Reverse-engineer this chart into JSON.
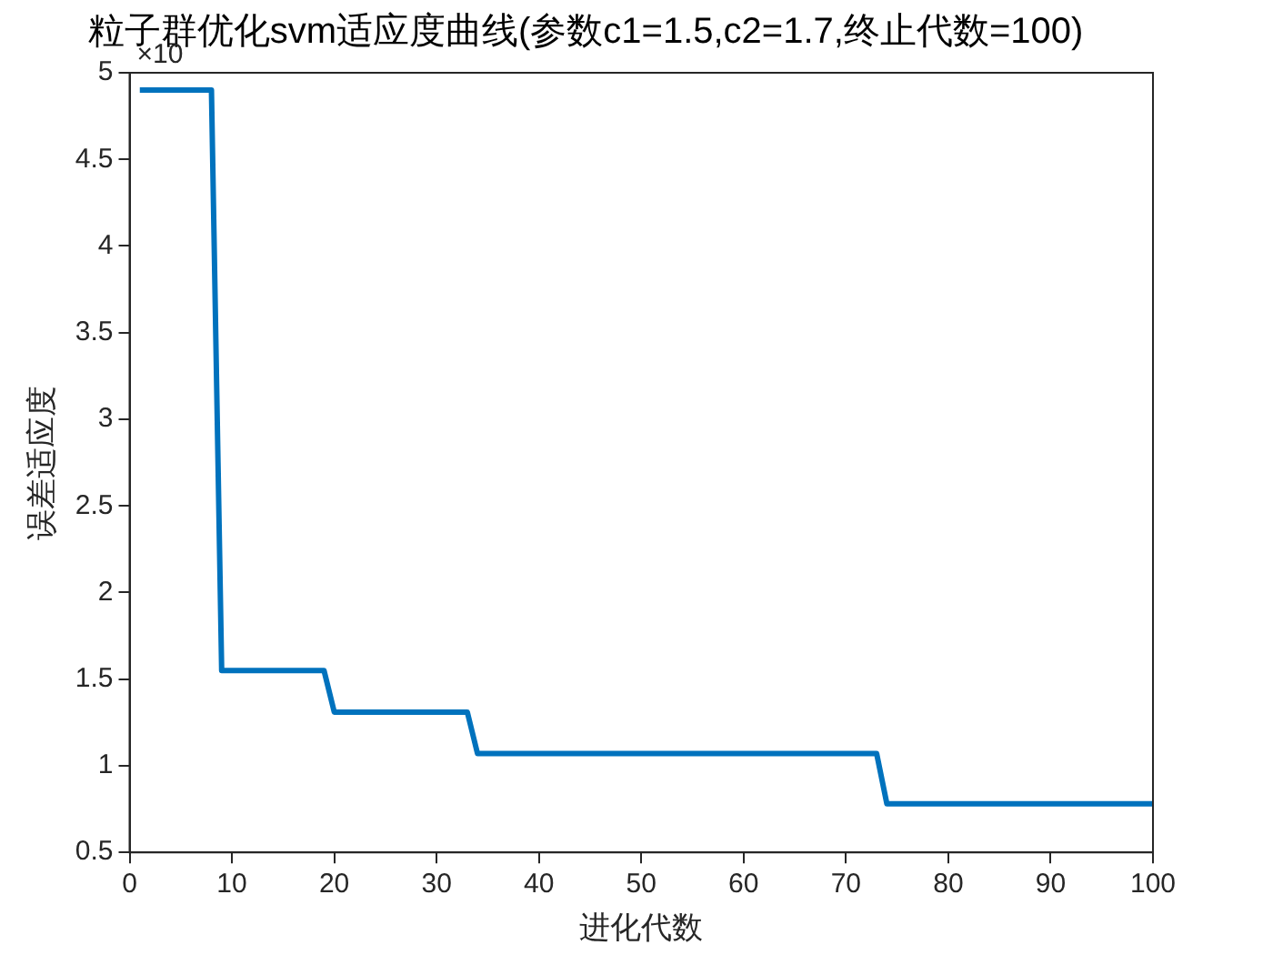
{
  "chart_data": {
    "type": "line",
    "title": "粒子群优化svm适应度曲线(参数c1=1.5,c2=1.7,终止代数=100)",
    "xlabel": "进化代数",
    "ylabel": "误差适应度",
    "annotations": [
      "×10"
    ],
    "series": [
      {
        "color": "#0072bd",
        "x": [
          1,
          8,
          9,
          19,
          20,
          33,
          34,
          73,
          74,
          100
        ],
        "values": [
          4.9,
          4.9,
          1.55,
          1.55,
          1.31,
          1.31,
          1.07,
          1.07,
          0.78,
          0.78
        ]
      }
    ],
    "xlim": [
      0,
      100
    ],
    "xticks": [
      0,
      10,
      20,
      30,
      40,
      50,
      60,
      70,
      80,
      90,
      100
    ],
    "ylim": [
      0.5,
      5
    ],
    "yticks": [
      0.5,
      1,
      1.5,
      2,
      2.5,
      3,
      3.5,
      4,
      4.5,
      5
    ],
    "grid": false,
    "legend": false,
    "marker": "none",
    "line_style": "solid"
  }
}
